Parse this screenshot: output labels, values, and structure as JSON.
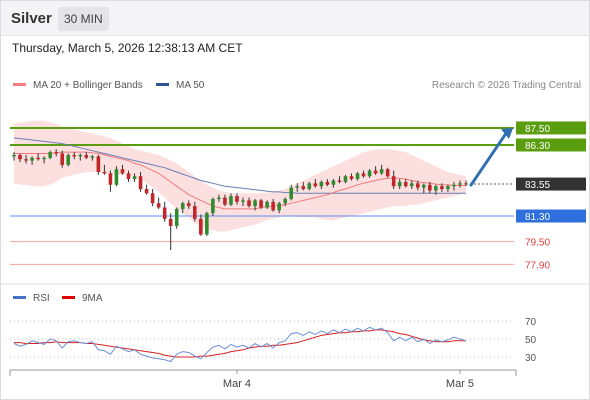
{
  "header": {
    "asset": "Silver",
    "timeframe": "30 MIN"
  },
  "datetime": "Thursday, March 5, 2026 12:38:13 AM CET",
  "legend": {
    "bb": {
      "label": "MA 20 + Bollinger Bands",
      "color": "#f08080"
    },
    "ma50": {
      "label": "MA 50",
      "color": "#2f5597"
    }
  },
  "copyright": "Research © 2026 Trading Central",
  "rsi_legend": {
    "rsi": {
      "label": "RSI",
      "color": "#4472c4"
    },
    "ma9": {
      "label": "9MA",
      "color": "#e00000"
    }
  },
  "levels": [
    {
      "value": 87.5,
      "label": "87.50",
      "kind": "resistance",
      "color": "#5a9e0f"
    },
    {
      "value": 86.3,
      "label": "86.30",
      "kind": "resistance",
      "color": "#5a9e0f"
    },
    {
      "value": 83.55,
      "label": "83.55",
      "kind": "last",
      "color": "#333333"
    },
    {
      "value": 81.3,
      "label": "81.30",
      "kind": "pivot",
      "color": "#2f6fde"
    },
    {
      "value": 79.5,
      "label": "79.50",
      "kind": "support",
      "color": "#e04040"
    },
    {
      "value": 77.9,
      "label": "77.90",
      "kind": "support",
      "color": "#e04040"
    }
  ],
  "xlabels": [
    {
      "index": 37,
      "label": "Mar 4"
    },
    {
      "index": 74,
      "label": "Mar 5"
    }
  ],
  "rsi_ticks": [
    {
      "value": 70,
      "label": "70"
    },
    {
      "value": 50,
      "label": "50"
    },
    {
      "value": 30,
      "label": "30"
    }
  ],
  "chart_data": [
    {
      "type": "candlestick",
      "title": "Silver 30 MIN",
      "ylim": [
        77.5,
        88.2
      ],
      "grid": false,
      "legend_position": "top-left",
      "candles": [
        [
          85.5,
          85.8,
          85.2,
          85.6
        ],
        [
          85.6,
          85.7,
          85.1,
          85.3
        ],
        [
          85.3,
          85.6,
          85.0,
          85.2
        ],
        [
          85.2,
          85.5,
          84.9,
          85.4
        ],
        [
          85.4,
          85.7,
          85.2,
          85.3
        ],
        [
          85.3,
          85.5,
          85.0,
          85.4
        ],
        [
          85.4,
          85.9,
          85.3,
          85.8
        ],
        [
          85.8,
          86.0,
          85.5,
          85.7
        ],
        [
          85.7,
          85.9,
          84.7,
          84.9
        ],
        [
          84.9,
          85.7,
          84.8,
          85.6
        ],
        [
          85.6,
          85.8,
          85.3,
          85.5
        ],
        [
          85.5,
          85.7,
          85.2,
          85.6
        ],
        [
          85.6,
          85.8,
          85.3,
          85.4
        ],
        [
          85.4,
          85.6,
          85.2,
          85.5
        ],
        [
          85.5,
          85.6,
          84.2,
          84.4
        ],
        [
          84.4,
          84.9,
          84.2,
          84.3
        ],
        [
          84.3,
          84.5,
          83.0,
          83.5
        ],
        [
          83.5,
          84.8,
          83.4,
          84.6
        ],
        [
          84.6,
          84.9,
          84.2,
          84.3
        ],
        [
          84.3,
          84.5,
          83.7,
          83.9
        ],
        [
          83.9,
          84.3,
          83.7,
          84.1
        ],
        [
          84.1,
          84.4,
          83.0,
          83.2
        ],
        [
          83.2,
          83.5,
          82.8,
          82.9
        ],
        [
          82.9,
          83.2,
          82.0,
          82.2
        ],
        [
          82.2,
          82.6,
          81.8,
          81.9
        ],
        [
          81.9,
          82.3,
          80.9,
          81.1
        ],
        [
          81.1,
          81.5,
          78.9,
          80.6
        ],
        [
          80.6,
          81.9,
          80.4,
          81.8
        ],
        [
          81.8,
          82.3,
          81.5,
          82.2
        ],
        [
          82.2,
          82.4,
          81.8,
          82.0
        ],
        [
          82.0,
          82.3,
          80.9,
          81.1
        ],
        [
          81.1,
          81.4,
          79.9,
          80.0
        ],
        [
          80.0,
          81.6,
          79.9,
          81.5
        ],
        [
          81.5,
          82.6,
          81.3,
          82.5
        ],
        [
          82.5,
          82.8,
          82.3,
          82.6
        ],
        [
          82.6,
          82.8,
          82.0,
          82.1
        ],
        [
          82.1,
          82.9,
          82.0,
          82.7
        ],
        [
          82.7,
          82.9,
          82.1,
          82.3
        ],
        [
          82.3,
          82.6,
          82.0,
          82.4
        ],
        [
          82.4,
          82.6,
          81.9,
          82.0
        ],
        [
          82.0,
          82.5,
          81.7,
          82.4
        ],
        [
          82.4,
          82.5,
          81.8,
          81.9
        ],
        [
          81.9,
          82.4,
          81.8,
          82.3
        ],
        [
          82.3,
          82.5,
          81.6,
          81.7
        ],
        [
          81.7,
          82.3,
          81.5,
          82.2
        ],
        [
          82.2,
          82.6,
          82.0,
          82.5
        ],
        [
          82.5,
          83.5,
          82.4,
          83.3
        ],
        [
          83.3,
          83.6,
          83.0,
          83.4
        ],
        [
          83.4,
          83.7,
          83.1,
          83.2
        ],
        [
          83.2,
          83.7,
          83.1,
          83.6
        ],
        [
          83.6,
          83.9,
          83.3,
          83.4
        ],
        [
          83.4,
          83.8,
          83.2,
          83.7
        ],
        [
          83.7,
          83.9,
          83.4,
          83.5
        ],
        [
          83.5,
          83.9,
          83.3,
          83.8
        ],
        [
          83.8,
          84.1,
          83.6,
          83.7
        ],
        [
          83.7,
          84.2,
          83.6,
          84.1
        ],
        [
          84.1,
          84.3,
          83.8,
          83.9
        ],
        [
          83.9,
          84.4,
          83.8,
          84.3
        ],
        [
          84.3,
          84.5,
          84.0,
          84.1
        ],
        [
          84.1,
          84.6,
          84.0,
          84.5
        ],
        [
          84.5,
          84.8,
          84.2,
          84.3
        ],
        [
          84.3,
          84.9,
          84.2,
          84.6
        ],
        [
          84.6,
          84.7,
          84.0,
          84.1
        ],
        [
          84.1,
          84.5,
          83.2,
          83.4
        ],
        [
          83.4,
          83.9,
          83.2,
          83.7
        ],
        [
          83.7,
          83.9,
          83.3,
          83.4
        ],
        [
          83.4,
          83.8,
          83.2,
          83.6
        ],
        [
          83.6,
          83.8,
          83.1,
          83.3
        ],
        [
          83.3,
          83.6,
          82.9,
          83.5
        ],
        [
          83.5,
          83.7,
          82.9,
          83.1
        ],
        [
          83.1,
          83.5,
          82.8,
          83.4
        ],
        [
          83.4,
          83.6,
          83.0,
          83.2
        ],
        [
          83.2,
          83.5,
          83.0,
          83.4
        ],
        [
          83.4,
          83.7,
          83.1,
          83.5
        ],
        [
          83.5,
          83.8,
          83.3,
          83.6
        ],
        [
          83.6,
          83.8,
          83.4,
          83.55
        ]
      ],
      "series": [
        {
          "name": "MA 20",
          "values": [
            85.7,
            85.7,
            85.7,
            85.7,
            85.7,
            85.7,
            85.7,
            85.75,
            85.8,
            85.8,
            85.8,
            85.8,
            85.8,
            85.75,
            85.7,
            85.6,
            85.5,
            85.4,
            85.3,
            85.2,
            85.0,
            84.9,
            84.7,
            84.5,
            84.3,
            84.0,
            83.7,
            83.4,
            83.1,
            82.8,
            82.6,
            82.4,
            82.2,
            82.0,
            81.9,
            81.8,
            81.8,
            81.8,
            81.8,
            81.8,
            81.8,
            81.9,
            81.95,
            82.0,
            82.05,
            82.1,
            82.2,
            82.3,
            82.4,
            82.5,
            82.6,
            82.7,
            82.8,
            82.95,
            83.1,
            83.2,
            83.35,
            83.5,
            83.6,
            83.7,
            83.8,
            83.9,
            83.95,
            84.0,
            83.95,
            83.9,
            83.8,
            83.7,
            83.65,
            83.6,
            83.55,
            83.5,
            83.5,
            83.45,
            83.45,
            83.45
          ]
        },
        {
          "name": "MA 50",
          "values": [
            86.8,
            86.75,
            86.7,
            86.65,
            86.6,
            86.55,
            86.5,
            86.45,
            86.4,
            86.3,
            86.2,
            86.1,
            86.0,
            85.9,
            85.8,
            85.7,
            85.6,
            85.5,
            85.4,
            85.3,
            85.2,
            85.1,
            85.0,
            84.9,
            84.8,
            84.7,
            84.55,
            84.4,
            84.25,
            84.1,
            83.95,
            83.8,
            83.7,
            83.6,
            83.5,
            83.4,
            83.35,
            83.3,
            83.25,
            83.2,
            83.15,
            83.1,
            83.05,
            83.0,
            83.0,
            82.95,
            82.95,
            82.9,
            82.9,
            82.9,
            82.9,
            82.9,
            82.9,
            82.9,
            82.9,
            82.9,
            82.9,
            82.9,
            82.9,
            82.9,
            82.9,
            82.9,
            82.9,
            82.9,
            82.9,
            82.9,
            82.9,
            82.9,
            82.9,
            82.9,
            82.9,
            82.9,
            82.9,
            82.9,
            82.9,
            82.9
          ]
        }
      ],
      "bollinger": {
        "upper": [
          87.8,
          87.9,
          87.9,
          88.0,
          88.0,
          88.0,
          87.9,
          87.8,
          87.6,
          87.5,
          87.4,
          87.3,
          87.2,
          87.1,
          87.0,
          86.9,
          86.8,
          86.6,
          86.4,
          86.2,
          86.0,
          85.9,
          85.8,
          85.7,
          85.6,
          85.4,
          85.2,
          85.0,
          84.7,
          84.4,
          84.1,
          83.8,
          83.5,
          83.3,
          83.1,
          83.0,
          82.9,
          82.9,
          82.9,
          82.9,
          82.9,
          82.9,
          82.95,
          83.0,
          83.1,
          83.2,
          83.4,
          83.6,
          83.8,
          84.0,
          84.2,
          84.4,
          84.6,
          84.8,
          85.0,
          85.2,
          85.4,
          85.6,
          85.8,
          85.9,
          86.0,
          86.0,
          86.0,
          85.95,
          85.9,
          85.8,
          85.6,
          85.4,
          85.2,
          85.0,
          84.8,
          84.6,
          84.4,
          84.3,
          84.2,
          84.1
        ],
        "lower": [
          83.6,
          83.5,
          83.5,
          83.4,
          83.4,
          83.4,
          83.5,
          83.7,
          84.0,
          84.1,
          84.2,
          84.3,
          84.4,
          84.4,
          84.4,
          84.3,
          84.2,
          84.2,
          84.2,
          84.2,
          84.0,
          83.9,
          83.6,
          83.3,
          83.0,
          82.6,
          82.2,
          81.8,
          81.5,
          81.2,
          80.8,
          80.6,
          80.4,
          80.3,
          80.2,
          80.2,
          80.3,
          80.4,
          80.5,
          80.6,
          80.7,
          80.85,
          81.0,
          81.1,
          81.2,
          81.3,
          81.3,
          81.2,
          81.2,
          81.2,
          81.2,
          81.1,
          81.0,
          81.0,
          81.1,
          81.2,
          81.3,
          81.4,
          81.5,
          81.6,
          81.7,
          81.8,
          81.9,
          82.0,
          82.0,
          82.0,
          82.1,
          82.1,
          82.2,
          82.3,
          82.4,
          82.5,
          82.6,
          82.7,
          82.8,
          82.9
        ]
      },
      "projection": {
        "from": 83.55,
        "to": 87.5
      }
    },
    {
      "type": "line",
      "title": "RSI",
      "ylim": [
        20,
        80
      ],
      "series": [
        {
          "name": "RSI",
          "values": [
            45,
            42,
            44,
            48,
            46,
            44,
            50,
            48,
            40,
            47,
            48,
            46,
            45,
            47,
            38,
            37,
            33,
            42,
            39,
            36,
            38,
            33,
            31,
            29,
            28,
            27,
            25,
            33,
            36,
            35,
            31,
            28,
            35,
            41,
            43,
            39,
            44,
            41,
            43,
            40,
            45,
            41,
            45,
            40,
            46,
            48,
            56,
            57,
            54,
            58,
            55,
            59,
            56,
            60,
            57,
            61,
            58,
            62,
            59,
            63,
            60,
            62,
            57,
            48,
            52,
            48,
            52,
            47,
            50,
            45,
            49,
            47,
            49,
            52,
            50,
            48
          ]
        },
        {
          "name": "9MA",
          "values": [
            46,
            46,
            45,
            45,
            45,
            46,
            46,
            47,
            46,
            46,
            46,
            46,
            45,
            45,
            44,
            43,
            42,
            41,
            40,
            39,
            38,
            37,
            36,
            35,
            34,
            32,
            31,
            30,
            30,
            30,
            30,
            31,
            31,
            32,
            33,
            34,
            36,
            37,
            38,
            40,
            41,
            42,
            42,
            43,
            43,
            44,
            45,
            46,
            48,
            50,
            52,
            54,
            55,
            56,
            57,
            57,
            58,
            58,
            59,
            59,
            60,
            60,
            59,
            58,
            56,
            55,
            53,
            51,
            49,
            48,
            47,
            47,
            47,
            48,
            48,
            48
          ]
        }
      ]
    }
  ]
}
